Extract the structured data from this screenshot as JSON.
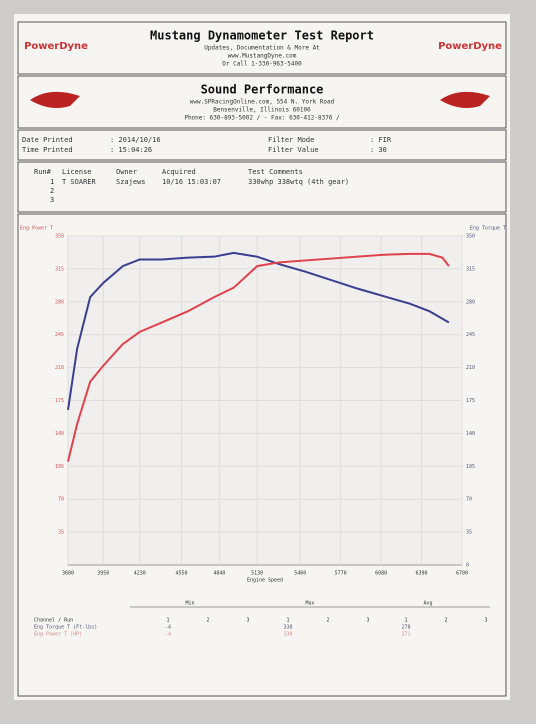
{
  "header": {
    "logo": "PowerDyne",
    "title": "Mustang Dynamometer Test Report",
    "lines": [
      "Updates, Documentation & More At",
      "www.MustangDyne.com",
      "Or Call 1-330-963-5400"
    ]
  },
  "shop": {
    "name": "Sound Performance",
    "lines": [
      "www.SPRacingOnline.com, 554 N. York Road",
      "Bensenville, Illinois 60106",
      "Phone: 630-893-5002 / - Fax: 630-412-8376 /"
    ]
  },
  "info": [
    [
      "Date Printed",
      ": 2014/10/16",
      "Filter Mode",
      ": FIR"
    ],
    [
      "Time Printed",
      ": 15:04:26",
      "Filter Value",
      ": 30"
    ]
  ],
  "runs": {
    "headers": [
      "Run#",
      "License",
      "Owner",
      "Acquired",
      "Test Comments"
    ],
    "rows": [
      [
        "1",
        "T SOARER",
        "Szajews",
        "10/16 15:03:07",
        "330whp 338wtq (4th gear)"
      ],
      [
        "2"
      ],
      [
        "3"
      ]
    ]
  },
  "chart_data": {
    "type": "line",
    "x_label": "Engine Speed",
    "y_label": "Eng Power T",
    "y2_label": "Eng Torque T",
    "x": [
      3680,
      3750,
      3850,
      3950,
      4100,
      4230,
      4400,
      4600,
      4800,
      4950,
      5130,
      5300,
      5500,
      5700,
      5900,
      6100,
      6300,
      6450,
      6550,
      6600
    ],
    "xlim": [
      3680,
      6700
    ],
    "xticks": [
      3680,
      3950,
      4230,
      4550,
      4840,
      5130,
      5460,
      5770,
      6080,
      6390,
      6700
    ],
    "ylim": [
      0,
      350
    ],
    "yticks": [
      35,
      70,
      105,
      140,
      175,
      210,
      245,
      280,
      315,
      350
    ],
    "y2lim": [
      0,
      350
    ],
    "y2ticks": [
      0,
      35,
      70,
      105,
      140,
      175,
      210,
      245,
      280,
      315,
      350
    ],
    "grid": true,
    "series": [
      {
        "color": "#3a3f8f",
        "axis": "y2",
        "values": [
          165,
          230,
          285,
          300,
          318,
          325,
          325,
          327,
          328,
          332,
          328,
          320,
          312,
          303,
          294,
          286,
          278,
          270,
          262,
          258
        ]
      },
      {
        "color": "#e0424c",
        "values": [
          110,
          150,
          195,
          212,
          235,
          248,
          258,
          270,
          285,
          295,
          318,
          322,
          324,
          326,
          328,
          330,
          331,
          331,
          327,
          318
        ]
      }
    ]
  },
  "summary": {
    "groups": [
      "Min",
      "Max",
      "Avg"
    ],
    "runs": [
      "1",
      "2",
      "3"
    ],
    "rows": [
      [
        "Channel / Run"
      ],
      [
        "Eng Torque T (Ft-lbs)",
        "-4",
        "338",
        "278"
      ],
      [
        "Eng Power T (HP)",
        "-4",
        "330",
        "271"
      ]
    ]
  }
}
